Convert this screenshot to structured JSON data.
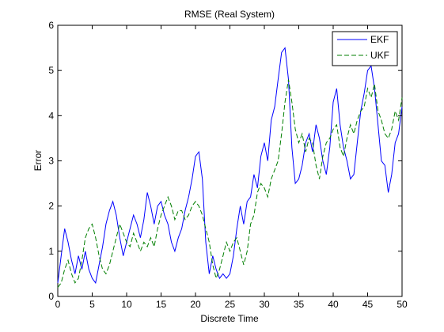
{
  "chart_data": {
    "type": "line",
    "title": "RMSE (Real System)",
    "xlabel": "Discrete Time",
    "ylabel": "Error",
    "xlim": [
      0,
      50
    ],
    "ylim": [
      0,
      6
    ],
    "xticks": [
      0,
      5,
      10,
      15,
      20,
      25,
      30,
      35,
      40,
      45,
      50
    ],
    "yticks": [
      0,
      1,
      2,
      3,
      4,
      5,
      6
    ],
    "grid": false,
    "legend": "top-right",
    "series": [
      {
        "name": "EKF",
        "color": "#0000ff",
        "style": "solid",
        "x": [
          0,
          0.5,
          1,
          1.5,
          2,
          2.5,
          3,
          3.5,
          4,
          4.5,
          5,
          5.5,
          6,
          6.5,
          7,
          7.5,
          8,
          8.5,
          9,
          9.5,
          10,
          10.5,
          11,
          11.5,
          12,
          12.5,
          13,
          13.5,
          14,
          14.5,
          15,
          15.5,
          16,
          16.5,
          17,
          17.5,
          18,
          18.5,
          19,
          19.5,
          20,
          20.5,
          21,
          21.5,
          22,
          22.5,
          23,
          23.5,
          24,
          24.5,
          25,
          25.5,
          26,
          26.5,
          27,
          27.5,
          28,
          28.5,
          29,
          29.5,
          30,
          30.5,
          31,
          31.5,
          32,
          32.5,
          33,
          33.5,
          34,
          34.5,
          35,
          35.5,
          36,
          36.5,
          37,
          37.5,
          38,
          38.5,
          39,
          39.5,
          40,
          40.5,
          41,
          41.5,
          42,
          42.5,
          43,
          43.5,
          44,
          44.5,
          45,
          45.5,
          46,
          46.5,
          47,
          47.5,
          48,
          48.5,
          49,
          49.5,
          50
        ],
        "values": [
          0.3,
          0.9,
          1.5,
          1.2,
          0.8,
          0.5,
          0.9,
          0.6,
          1.0,
          0.6,
          0.4,
          0.3,
          0.7,
          1.1,
          1.6,
          1.9,
          2.1,
          1.8,
          1.3,
          0.9,
          1.2,
          1.5,
          1.8,
          1.6,
          1.3,
          1.7,
          2.3,
          2.0,
          1.6,
          2.0,
          2.1,
          1.8,
          1.6,
          1.2,
          1.0,
          1.3,
          1.5,
          1.9,
          2.2,
          2.6,
          3.1,
          3.2,
          2.6,
          1.2,
          0.5,
          0.9,
          0.6,
          0.4,
          0.5,
          0.4,
          0.5,
          0.9,
          1.5,
          2.0,
          1.6,
          2.1,
          2.2,
          2.7,
          2.4,
          3.1,
          3.4,
          3.0,
          3.9,
          4.2,
          4.8,
          5.4,
          5.5,
          4.8,
          3.3,
          2.5,
          2.6,
          2.9,
          3.4,
          3.6,
          3.2,
          3.8,
          3.5,
          3.0,
          2.7,
          3.3,
          4.3,
          4.6,
          3.8,
          3.3,
          3.0,
          2.6,
          2.7,
          3.4,
          4.1,
          4.5,
          5.0,
          5.1,
          4.6,
          3.8,
          3.0,
          2.9,
          2.3,
          2.7,
          3.4,
          3.6,
          4.2
        ]
      },
      {
        "name": "UKF",
        "color": "#007f00",
        "style": "dashed",
        "x": [
          0,
          0.5,
          1,
          1.5,
          2,
          2.5,
          3,
          3.5,
          4,
          4.5,
          5,
          5.5,
          6,
          6.5,
          7,
          7.5,
          8,
          8.5,
          9,
          9.5,
          10,
          10.5,
          11,
          11.5,
          12,
          12.5,
          13,
          13.5,
          14,
          14.5,
          15,
          15.5,
          16,
          16.5,
          17,
          17.5,
          18,
          18.5,
          19,
          19.5,
          20,
          20.5,
          21,
          21.5,
          22,
          22.5,
          23,
          23.5,
          24,
          24.5,
          25,
          25.5,
          26,
          26.5,
          27,
          27.5,
          28,
          28.5,
          29,
          29.5,
          30,
          30.5,
          31,
          31.5,
          32,
          32.5,
          33,
          33.5,
          34,
          34.5,
          35,
          35.5,
          36,
          36.5,
          37,
          37.5,
          38,
          38.5,
          39,
          39.5,
          40,
          40.5,
          41,
          41.5,
          42,
          42.5,
          43,
          43.5,
          44,
          44.5,
          45,
          45.5,
          46,
          46.5,
          47,
          47.5,
          48,
          48.5,
          49,
          49.5,
          50
        ],
        "values": [
          0.2,
          0.3,
          0.6,
          0.8,
          0.5,
          0.3,
          0.4,
          0.8,
          1.3,
          1.5,
          1.6,
          1.3,
          0.9,
          0.6,
          0.5,
          0.7,
          1.0,
          1.3,
          1.6,
          1.4,
          1.2,
          1.1,
          1.4,
          1.2,
          1.0,
          1.2,
          1.1,
          1.3,
          1.1,
          1.5,
          1.8,
          2.0,
          2.2,
          2.0,
          1.7,
          1.9,
          1.9,
          1.7,
          1.8,
          2.0,
          2.1,
          2.0,
          1.8,
          1.5,
          1.2,
          0.7,
          0.4,
          0.6,
          0.9,
          1.2,
          1.0,
          1.2,
          1.3,
          1.0,
          0.7,
          1.0,
          1.6,
          1.8,
          2.3,
          2.5,
          2.4,
          2.2,
          2.6,
          2.8,
          3.0,
          3.6,
          4.3,
          4.8,
          4.3,
          3.7,
          3.4,
          3.6,
          3.2,
          3.5,
          3.4,
          2.9,
          2.6,
          3.1,
          3.4,
          3.5,
          3.7,
          3.8,
          3.3,
          3.1,
          3.5,
          3.8,
          3.6,
          3.9,
          4.1,
          4.2,
          4.6,
          4.4,
          4.7,
          4.1,
          3.9,
          3.6,
          3.5,
          3.7,
          4.1,
          3.9,
          4.4
        ]
      }
    ]
  }
}
